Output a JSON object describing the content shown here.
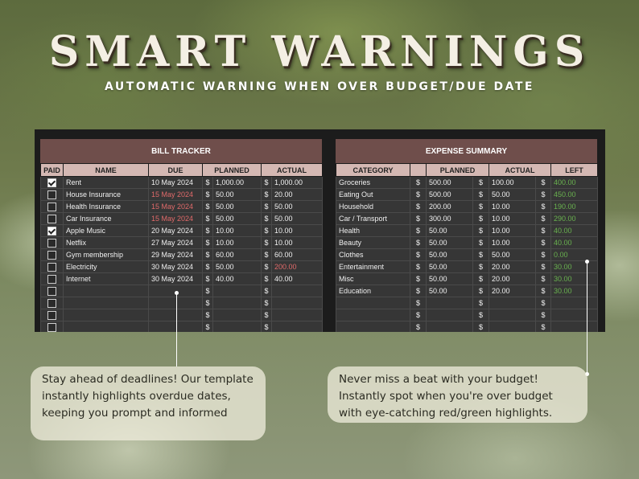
{
  "header": {
    "title": "SMART WARNINGS",
    "subtitle": "AUTOMATIC WARNING WHEN OVER BUDGET/DUE DATE"
  },
  "bill_tracker": {
    "title": "BILL TRACKER",
    "columns": [
      "PAID",
      "NAME",
      "DUE",
      "PLANNED",
      "ACTUAL"
    ],
    "currency": "$",
    "rows": [
      {
        "paid": true,
        "name": "Rent",
        "due": "10 May 2024",
        "due_overdue": false,
        "planned": "1,000.00",
        "actual": "1,000.00",
        "actual_over": false
      },
      {
        "paid": false,
        "name": "House Insurance",
        "due": "15 May 2024",
        "due_overdue": true,
        "planned": "50.00",
        "actual": "20.00",
        "actual_over": false
      },
      {
        "paid": false,
        "name": "Health Insurance",
        "due": "15 May 2024",
        "due_overdue": true,
        "planned": "50.00",
        "actual": "50.00",
        "actual_over": false
      },
      {
        "paid": false,
        "name": "Car Insurance",
        "due": "15 May 2024",
        "due_overdue": true,
        "planned": "50.00",
        "actual": "50.00",
        "actual_over": false
      },
      {
        "paid": true,
        "name": "Apple Music",
        "due": "20 May 2024",
        "due_overdue": false,
        "planned": "10.00",
        "actual": "10.00",
        "actual_over": false
      },
      {
        "paid": false,
        "name": "Netflix",
        "due": "27 May 2024",
        "due_overdue": false,
        "planned": "10.00",
        "actual": "10.00",
        "actual_over": false
      },
      {
        "paid": false,
        "name": "Gym membership",
        "due": "29 May 2024",
        "due_overdue": false,
        "planned": "60.00",
        "actual": "60.00",
        "actual_over": false
      },
      {
        "paid": false,
        "name": "Electricity",
        "due": "30 May 2024",
        "due_overdue": false,
        "planned": "50.00",
        "actual": "200.00",
        "actual_over": true
      },
      {
        "paid": false,
        "name": "Internet",
        "due": "30 May 2024",
        "due_overdue": false,
        "planned": "40.00",
        "actual": "40.00",
        "actual_over": false
      },
      {
        "paid": false,
        "name": "",
        "due": "",
        "due_overdue": false,
        "planned": "",
        "actual": "",
        "actual_over": false
      },
      {
        "paid": false,
        "name": "",
        "due": "",
        "due_overdue": false,
        "planned": "",
        "actual": "",
        "actual_over": false
      },
      {
        "paid": false,
        "name": "",
        "due": "",
        "due_overdue": false,
        "planned": "",
        "actual": "",
        "actual_over": false
      },
      {
        "paid": false,
        "name": "",
        "due": "",
        "due_overdue": false,
        "planned": "",
        "actual": "",
        "actual_over": false
      }
    ]
  },
  "expense_summary": {
    "title": "EXPENSE SUMMARY",
    "columns": [
      "CATEGORY",
      "PLANNED",
      "ACTUAL",
      "LEFT"
    ],
    "currency": "$",
    "rows": [
      {
        "category": "Groceries",
        "planned": "500.00",
        "actual": "100.00",
        "left": "400.00"
      },
      {
        "category": "Eating Out",
        "planned": "500.00",
        "actual": "50.00",
        "left": "450.00"
      },
      {
        "category": "Household",
        "planned": "200.00",
        "actual": "10.00",
        "left": "190.00"
      },
      {
        "category": "Car / Transport",
        "planned": "300.00",
        "actual": "10.00",
        "left": "290.00"
      },
      {
        "category": "Health",
        "planned": "50.00",
        "actual": "10.00",
        "left": "40.00"
      },
      {
        "category": "Beauty",
        "planned": "50.00",
        "actual": "10.00",
        "left": "40.00"
      },
      {
        "category": "Clothes",
        "planned": "50.00",
        "actual": "50.00",
        "left": "0.00"
      },
      {
        "category": "Entertainment",
        "planned": "50.00",
        "actual": "20.00",
        "left": "30.00"
      },
      {
        "category": "Misc",
        "planned": "50.00",
        "actual": "20.00",
        "left": "30.00"
      },
      {
        "category": "Education",
        "planned": "50.00",
        "actual": "20.00",
        "left": "30.00"
      },
      {
        "category": "",
        "planned": "",
        "actual": "",
        "left": ""
      },
      {
        "category": "",
        "planned": "",
        "actual": "",
        "left": ""
      },
      {
        "category": "",
        "planned": "",
        "actual": "",
        "left": ""
      }
    ]
  },
  "callouts": {
    "left": "Stay ahead of deadlines! Our template instantly highlights overdue dates, keeping you prompt and informed",
    "right": "Never miss a beat with your budget! Instantly spot when you're over budget with eye-catching red/green highlights."
  },
  "colors": {
    "header_bar": "#6f4e4b",
    "column_header": "#d4b8b3",
    "overdue": "#e06a6a",
    "positive": "#69b24f"
  }
}
